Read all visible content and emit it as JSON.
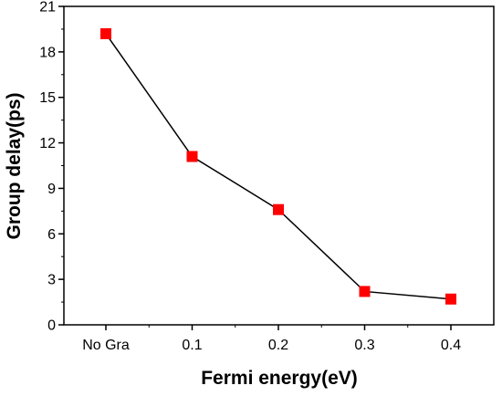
{
  "chart_data": {
    "type": "line",
    "categories": [
      "No Gra",
      "0.1",
      "0.2",
      "0.3",
      "0.4"
    ],
    "values": [
      19.2,
      11.1,
      7.6,
      2.2,
      1.7
    ],
    "xlabel": "Fermi energy(eV)",
    "ylabel": "Group delay(ps)",
    "ylim": [
      0,
      21
    ],
    "yticks": [
      0,
      3,
      6,
      9,
      12,
      15,
      18,
      21
    ],
    "grid": false,
    "legend": "none",
    "marker": "square",
    "marker_color": "#ff0000",
    "line_color": "#000000"
  }
}
